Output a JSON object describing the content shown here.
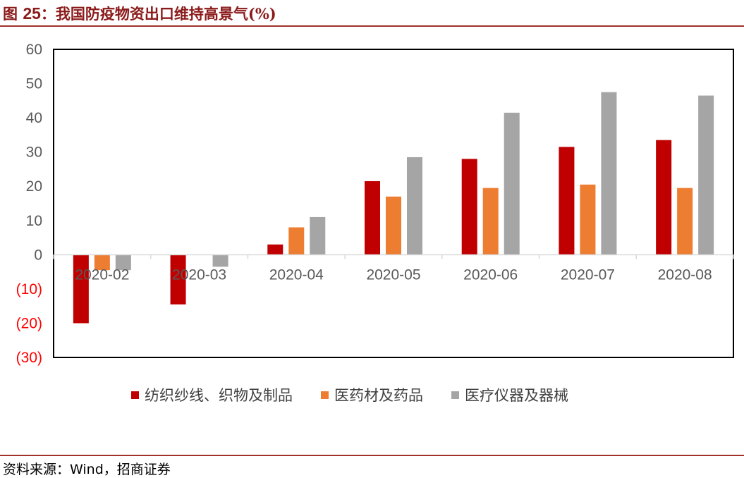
{
  "header": {
    "fig_label": "图",
    "fig_num": "25",
    "fig_title": "：我国防疫物资出口维持高景气(%)"
  },
  "source": "资料来源：Wind，招商证券",
  "colors": {
    "series": [
      "#c00000",
      "#ed7d31",
      "#a5a5a5"
    ],
    "negative_tick": "#ff0000",
    "tick": "#595959",
    "accent": "#a0322a"
  },
  "chart_data": {
    "type": "bar",
    "categories": [
      "2020-02",
      "2020-03",
      "2020-04",
      "2020-05",
      "2020-06",
      "2020-07",
      "2020-08"
    ],
    "series": [
      {
        "name": "纺织纱线、织物及制品",
        "values": [
          -20,
          -14.5,
          3,
          21.5,
          28,
          31.5,
          33.5
        ]
      },
      {
        "name": "医药材及药品",
        "values": [
          -4.5,
          0,
          8,
          17,
          19.5,
          20.5,
          19.5
        ]
      },
      {
        "name": "医疗仪器及器械",
        "values": [
          -4.5,
          -3.5,
          11,
          28.5,
          41.5,
          47.5,
          46.5
        ]
      }
    ],
    "y_ticks": [
      "60",
      "50",
      "40",
      "30",
      "20",
      "10",
      "0",
      "(10)",
      "(20)",
      "(30)"
    ],
    "ylim": [
      -30,
      60
    ],
    "grid": false,
    "legend": "bottom"
  }
}
